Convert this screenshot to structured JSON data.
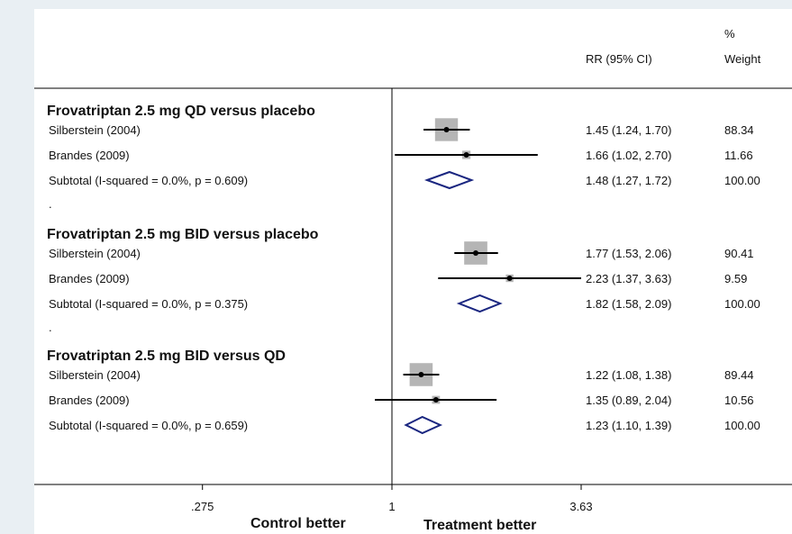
{
  "header": {
    "rr_label": "RR (95% CI)",
    "weight_pct": "%",
    "weight_label": "Weight"
  },
  "chart_data": {
    "type": "forest",
    "x_scale": "log",
    "xlim": [
      0.275,
      3.63
    ],
    "x_ticks": [
      {
        "value": 0.275,
        "label": ".275"
      },
      {
        "value": 1,
        "label": "1"
      },
      {
        "value": 3.63,
        "label": "3.63"
      }
    ],
    "xlabel_left": "Control better",
    "xlabel_right": "Treatment better",
    "reference_line": 1,
    "groups": [
      {
        "title": "Frovatriptan 2.5 mg QD versus placebo",
        "studies": [
          {
            "name": "Silberstein (2004)",
            "rr": 1.45,
            "lo": 1.24,
            "hi": 1.7,
            "rr_text": "1.45 (1.24, 1.70)",
            "weight": "88.34"
          },
          {
            "name": "Brandes (2009)",
            "rr": 1.66,
            "lo": 1.02,
            "hi": 2.7,
            "rr_text": "1.66 (1.02, 2.70)",
            "weight": "11.66"
          }
        ],
        "subtotal": {
          "label": "Subtotal  (I-squared = 0.0%, p = 0.609)",
          "rr": 1.48,
          "lo": 1.27,
          "hi": 1.72,
          "rr_text": "1.48 (1.27, 1.72)",
          "weight": "100.00"
        },
        "separator": "."
      },
      {
        "title": "Frovatriptan 2.5 mg BID versus placebo",
        "studies": [
          {
            "name": "Silberstein (2004)",
            "rr": 1.77,
            "lo": 1.53,
            "hi": 2.06,
            "rr_text": "1.77 (1.53, 2.06)",
            "weight": "90.41"
          },
          {
            "name": "Brandes (2009)",
            "rr": 2.23,
            "lo": 1.37,
            "hi": 3.63,
            "rr_text": "2.23 (1.37, 3.63)",
            "weight": "9.59"
          }
        ],
        "subtotal": {
          "label": "Subtotal  (I-squared = 0.0%, p = 0.375)",
          "rr": 1.82,
          "lo": 1.58,
          "hi": 2.09,
          "rr_text": "1.82 (1.58, 2.09)",
          "weight": "100.00"
        },
        "separator": "."
      },
      {
        "title": "Frovatriptan 2.5 mg BID versus QD",
        "studies": [
          {
            "name": "Silberstein (2004)",
            "rr": 1.22,
            "lo": 1.08,
            "hi": 1.38,
            "rr_text": "1.22 (1.08, 1.38)",
            "weight": "89.44"
          },
          {
            "name": "Brandes (2009)",
            "rr": 1.35,
            "lo": 0.89,
            "hi": 2.04,
            "rr_text": "1.35 (0.89, 2.04)",
            "weight": "10.56"
          }
        ],
        "subtotal": {
          "label": "Subtotal  (I-squared = 0.0%, p = 0.659)",
          "rr": 1.23,
          "lo": 1.1,
          "hi": 1.39,
          "rr_text": "1.23 (1.10, 1.39)",
          "weight": "100.00"
        }
      }
    ],
    "colors": {
      "box": "#b5b5b5",
      "line": "#000000",
      "diamond": "#1a2680"
    }
  }
}
